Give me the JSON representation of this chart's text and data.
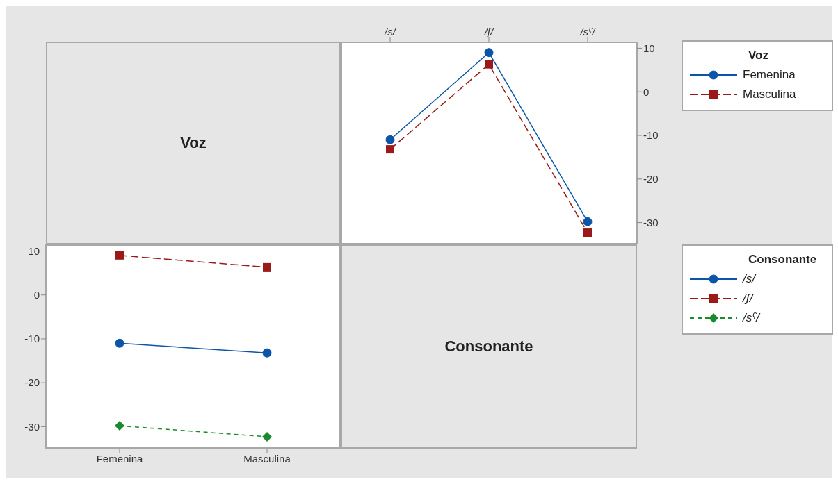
{
  "chart_data": [
    {
      "type": "line",
      "xlabel": "Consonante",
      "legend_title": "Voz",
      "categories": [
        "/s/",
        "/ʃ/",
        "/sˤ/"
      ],
      "ylim": [
        -35,
        11.5
      ],
      "yticks": [
        -30,
        -20,
        -10,
        0,
        10
      ],
      "grid": false,
      "legend": "right",
      "series": [
        {
          "name": "Femenina",
          "color": "#0b55a8",
          "values": [
            -11,
            9,
            -29.8
          ],
          "marker": "circle",
          "line_style": "solid"
        },
        {
          "name": "Masculina",
          "color": "#9a1a1a",
          "values": [
            -13.2,
            6.3,
            -32.3
          ],
          "marker": "square",
          "line_style": "dashed"
        }
      ]
    },
    {
      "type": "line",
      "xlabel": "Voz",
      "legend_title": "Consonante",
      "categories": [
        "Femenina",
        "Masculina"
      ],
      "ylim": [
        -35,
        11.5
      ],
      "yticks": [
        -30,
        -20,
        -10,
        0,
        10
      ],
      "grid": false,
      "legend": "right",
      "series": [
        {
          "name": "/s/",
          "color": "#0b55a8",
          "values": [
            -11,
            -13.2
          ],
          "marker": "circle",
          "line_style": "solid"
        },
        {
          "name": "/ʃ/",
          "color": "#9a1a1a",
          "values": [
            9,
            6.3
          ],
          "marker": "square",
          "line_style": "dashed"
        },
        {
          "name": "/sˤ/",
          "color": "#1a8a2e",
          "values": [
            -29.8,
            -32.3
          ],
          "marker": "diamond",
          "line_style": "dotted"
        }
      ]
    }
  ]
}
